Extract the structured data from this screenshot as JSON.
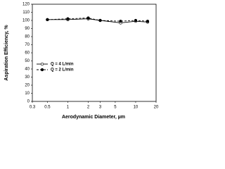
{
  "chart_data": {
    "type": "line",
    "x_label": "Aerodynamic Diameter, µm",
    "y_label": "Aspiration Efficiency, %",
    "x": [
      0.5,
      1,
      2,
      3,
      6,
      10,
      15
    ],
    "series": [
      {
        "name": "Q = 4 L/min",
        "color": "#000000",
        "dash": "solid",
        "marker": "open",
        "values": [
          101,
          101,
          102,
          100,
          97,
          99,
          98
        ]
      },
      {
        "name": "Q = 2 L/min",
        "color": "#000000",
        "dash": "dashed",
        "marker": "filled",
        "values": [
          101,
          102,
          103,
          100,
          99,
          100,
          99
        ]
      }
    ],
    "xscale": "log",
    "xlim": [
      0.3,
      20
    ],
    "xticks": [
      0.3,
      0.5,
      1,
      2,
      3,
      5,
      10,
      20
    ],
    "ylim": [
      0,
      120
    ],
    "yticks": [
      0,
      10,
      20,
      30,
      40,
      50,
      60,
      70,
      80,
      90,
      100,
      110,
      120
    ],
    "grid": false,
    "legend": "center left"
  }
}
